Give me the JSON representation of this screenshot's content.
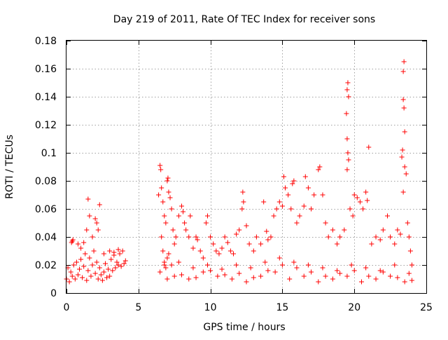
{
  "chart_data": {
    "type": "scatter",
    "title": "Day 219 of 2011, Rate Of TEC Index for receiver sons",
    "xlabel": "GPS time / hours",
    "ylabel": "ROTI / TECUs",
    "xlim": [
      0,
      25
    ],
    "ylim": [
      0,
      0.18
    ],
    "xticks": [
      0,
      5,
      10,
      15,
      20,
      25
    ],
    "yticks": [
      0,
      0.02,
      0.04,
      0.06,
      0.08,
      0.1,
      0.12,
      0.14,
      0.16,
      0.18
    ],
    "xtick_labels": [
      "0",
      "5",
      "10",
      "15",
      "20",
      "25"
    ],
    "ytick_labels": [
      "0",
      "0.02",
      "0.04",
      "0.06",
      "0.08",
      "0.1",
      "0.12",
      "0.14",
      "0.16",
      "0.18"
    ],
    "grid": true,
    "marker": "+",
    "marker_color": "#ff0000",
    "series": [
      {
        "points": [
          [
            0.0,
            0.01
          ],
          [
            0.1,
            0.018
          ],
          [
            0.2,
            0.008
          ],
          [
            0.3,
            0.015
          ],
          [
            0.4,
            0.012
          ],
          [
            0.5,
            0.02
          ],
          [
            0.6,
            0.01
          ],
          [
            0.7,
            0.022
          ],
          [
            0.8,
            0.013
          ],
          [
            0.9,
            0.017
          ],
          [
            1.0,
            0.024
          ],
          [
            1.1,
            0.011
          ],
          [
            1.2,
            0.019
          ],
          [
            1.3,
            0.028
          ],
          [
            1.4,
            0.009
          ],
          [
            1.5,
            0.016
          ],
          [
            1.6,
            0.025
          ],
          [
            1.7,
            0.012
          ],
          [
            1.8,
            0.02
          ],
          [
            1.9,
            0.03
          ],
          [
            2.0,
            0.014
          ],
          [
            2.1,
            0.022
          ],
          [
            2.2,
            0.01
          ],
          [
            2.3,
            0.018
          ],
          [
            2.4,
            0.013
          ],
          [
            2.5,
            0.009
          ],
          [
            2.6,
            0.015
          ],
          [
            2.7,
            0.021
          ],
          [
            2.8,
            0.011
          ],
          [
            2.9,
            0.017
          ],
          [
            3.0,
            0.012
          ],
          [
            3.1,
            0.024
          ],
          [
            3.2,
            0.016
          ],
          [
            3.3,
            0.027
          ],
          [
            3.4,
            0.018
          ],
          [
            3.5,
            0.022
          ],
          [
            3.6,
            0.02
          ],
          [
            3.7,
            0.028
          ],
          [
            3.8,
            0.019
          ],
          [
            3.9,
            0.03
          ],
          [
            4.0,
            0.021
          ],
          [
            4.1,
            0.023
          ],
          [
            0.4,
            0.037
          ],
          [
            0.35,
            0.036
          ],
          [
            0.45,
            0.038
          ],
          [
            1.5,
            0.067
          ],
          [
            1.6,
            0.055
          ],
          [
            1.4,
            0.045
          ],
          [
            2.0,
            0.053
          ],
          [
            2.1,
            0.05
          ],
          [
            2.2,
            0.045
          ],
          [
            2.3,
            0.063
          ],
          [
            1.0,
            0.032
          ],
          [
            1.2,
            0.036
          ],
          [
            2.6,
            0.028
          ],
          [
            3.0,
            0.03
          ],
          [
            3.3,
            0.029
          ],
          [
            3.6,
            0.031
          ],
          [
            0.8,
            0.035
          ],
          [
            1.8,
            0.04
          ],
          [
            6.4,
            0.07
          ],
          [
            6.5,
            0.091
          ],
          [
            6.55,
            0.088
          ],
          [
            6.6,
            0.075
          ],
          [
            6.7,
            0.065
          ],
          [
            6.8,
            0.055
          ],
          [
            6.9,
            0.05
          ],
          [
            7.0,
            0.08
          ],
          [
            7.05,
            0.082
          ],
          [
            7.1,
            0.072
          ],
          [
            7.2,
            0.068
          ],
          [
            7.3,
            0.06
          ],
          [
            7.4,
            0.045
          ],
          [
            7.5,
            0.035
          ],
          [
            6.6,
            0.04
          ],
          [
            6.7,
            0.03
          ],
          [
            6.8,
            0.022
          ],
          [
            6.9,
            0.018
          ],
          [
            7.0,
            0.025
          ],
          [
            7.1,
            0.028
          ],
          [
            7.3,
            0.02
          ],
          [
            7.6,
            0.04
          ],
          [
            7.8,
            0.055
          ],
          [
            8.0,
            0.062
          ],
          [
            8.1,
            0.058
          ],
          [
            8.2,
            0.05
          ],
          [
            8.3,
            0.045
          ],
          [
            8.5,
            0.04
          ],
          [
            8.6,
            0.055
          ],
          [
            8.8,
            0.032
          ],
          [
            9.0,
            0.04
          ],
          [
            9.1,
            0.038
          ],
          [
            9.3,
            0.03
          ],
          [
            9.5,
            0.025
          ],
          [
            9.7,
            0.05
          ],
          [
            9.8,
            0.055
          ],
          [
            10.0,
            0.04
          ],
          [
            10.2,
            0.035
          ],
          [
            10.4,
            0.03
          ],
          [
            10.6,
            0.028
          ],
          [
            10.8,
            0.032
          ],
          [
            11.0,
            0.04
          ],
          [
            11.2,
            0.036
          ],
          [
            11.4,
            0.03
          ],
          [
            11.6,
            0.028
          ],
          [
            11.8,
            0.042
          ],
          [
            12.0,
            0.045
          ],
          [
            12.2,
            0.06
          ],
          [
            12.25,
            0.072
          ],
          [
            12.3,
            0.065
          ],
          [
            12.5,
            0.048
          ],
          [
            12.7,
            0.035
          ],
          [
            13.0,
            0.03
          ],
          [
            13.2,
            0.04
          ],
          [
            13.5,
            0.035
          ],
          [
            13.7,
            0.065
          ],
          [
            13.9,
            0.044
          ],
          [
            14.0,
            0.038
          ],
          [
            14.2,
            0.04
          ],
          [
            14.4,
            0.055
          ],
          [
            14.6,
            0.06
          ],
          [
            14.8,
            0.065
          ],
          [
            15.0,
            0.062
          ],
          [
            15.1,
            0.083
          ],
          [
            15.2,
            0.075
          ],
          [
            15.4,
            0.07
          ],
          [
            15.6,
            0.06
          ],
          [
            15.7,
            0.078
          ],
          [
            15.8,
            0.08
          ],
          [
            16.0,
            0.05
          ],
          [
            16.2,
            0.055
          ],
          [
            16.5,
            0.062
          ],
          [
            16.6,
            0.083
          ],
          [
            16.8,
            0.075
          ],
          [
            17.0,
            0.06
          ],
          [
            17.2,
            0.07
          ],
          [
            17.5,
            0.088
          ],
          [
            17.6,
            0.09
          ],
          [
            17.8,
            0.07
          ],
          [
            18.0,
            0.05
          ],
          [
            18.2,
            0.04
          ],
          [
            18.5,
            0.045
          ],
          [
            18.8,
            0.035
          ],
          [
            19.0,
            0.04
          ],
          [
            19.3,
            0.045
          ],
          [
            19.5,
            0.145
          ],
          [
            19.55,
            0.15
          ],
          [
            19.6,
            0.14
          ],
          [
            19.45,
            0.128
          ],
          [
            19.5,
            0.11
          ],
          [
            19.55,
            0.1
          ],
          [
            19.5,
            0.088
          ],
          [
            19.6,
            0.095
          ],
          [
            19.7,
            0.06
          ],
          [
            19.9,
            0.055
          ],
          [
            20.0,
            0.07
          ],
          [
            20.2,
            0.068
          ],
          [
            20.4,
            0.065
          ],
          [
            20.6,
            0.06
          ],
          [
            20.8,
            0.072
          ],
          [
            21.0,
            0.104
          ],
          [
            20.9,
            0.066
          ],
          [
            21.2,
            0.035
          ],
          [
            21.5,
            0.04
          ],
          [
            21.8,
            0.038
          ],
          [
            22.0,
            0.045
          ],
          [
            22.3,
            0.055
          ],
          [
            22.5,
            0.04
          ],
          [
            22.8,
            0.035
          ],
          [
            23.0,
            0.045
          ],
          [
            23.2,
            0.042
          ],
          [
            23.3,
            0.097
          ],
          [
            23.35,
            0.102
          ],
          [
            23.4,
            0.138
          ],
          [
            23.45,
            0.165
          ],
          [
            23.4,
            0.158
          ],
          [
            23.5,
            0.115
          ],
          [
            23.45,
            0.132
          ],
          [
            23.5,
            0.09
          ],
          [
            23.6,
            0.085
          ],
          [
            23.4,
            0.072
          ],
          [
            23.7,
            0.05
          ],
          [
            23.8,
            0.04
          ],
          [
            23.9,
            0.03
          ],
          [
            24.0,
            0.02
          ],
          [
            6.5,
            0.015
          ],
          [
            7.5,
            0.012
          ],
          [
            8.5,
            0.01
          ],
          [
            9.5,
            0.015
          ],
          [
            10.5,
            0.012
          ],
          [
            11.5,
            0.01
          ],
          [
            12.5,
            0.008
          ],
          [
            13.5,
            0.012
          ],
          [
            14.5,
            0.015
          ],
          [
            15.5,
            0.01
          ],
          [
            16.5,
            0.012
          ],
          [
            17.5,
            0.008
          ],
          [
            18.5,
            0.01
          ],
          [
            19.5,
            0.012
          ],
          [
            20.5,
            0.008
          ],
          [
            21.5,
            0.01
          ],
          [
            22.5,
            0.012
          ],
          [
            23.5,
            0.008
          ],
          [
            7.0,
            0.01
          ],
          [
            8.0,
            0.013
          ],
          [
            9.0,
            0.011
          ],
          [
            10.0,
            0.016
          ],
          [
            11.0,
            0.013
          ],
          [
            12.0,
            0.014
          ],
          [
            13.0,
            0.011
          ],
          [
            14.0,
            0.016
          ],
          [
            15.0,
            0.02
          ],
          [
            16.0,
            0.018
          ],
          [
            17.0,
            0.015
          ],
          [
            18.0,
            0.012
          ],
          [
            19.0,
            0.014
          ],
          [
            20.0,
            0.016
          ],
          [
            21.0,
            0.012
          ],
          [
            22.0,
            0.015
          ],
          [
            23.0,
            0.011
          ],
          [
            24.0,
            0.009
          ],
          [
            6.8,
            0.02
          ],
          [
            7.8,
            0.022
          ],
          [
            8.8,
            0.018
          ],
          [
            9.8,
            0.02
          ],
          [
            10.8,
            0.017
          ],
          [
            11.8,
            0.02
          ],
          [
            12.8,
            0.018
          ],
          [
            13.8,
            0.022
          ],
          [
            14.8,
            0.025
          ],
          [
            15.8,
            0.022
          ],
          [
            16.8,
            0.02
          ],
          [
            17.8,
            0.018
          ],
          [
            18.8,
            0.016
          ],
          [
            19.8,
            0.02
          ],
          [
            20.8,
            0.018
          ],
          [
            21.8,
            0.016
          ],
          [
            22.8,
            0.02
          ],
          [
            23.8,
            0.014
          ]
        ]
      }
    ]
  }
}
